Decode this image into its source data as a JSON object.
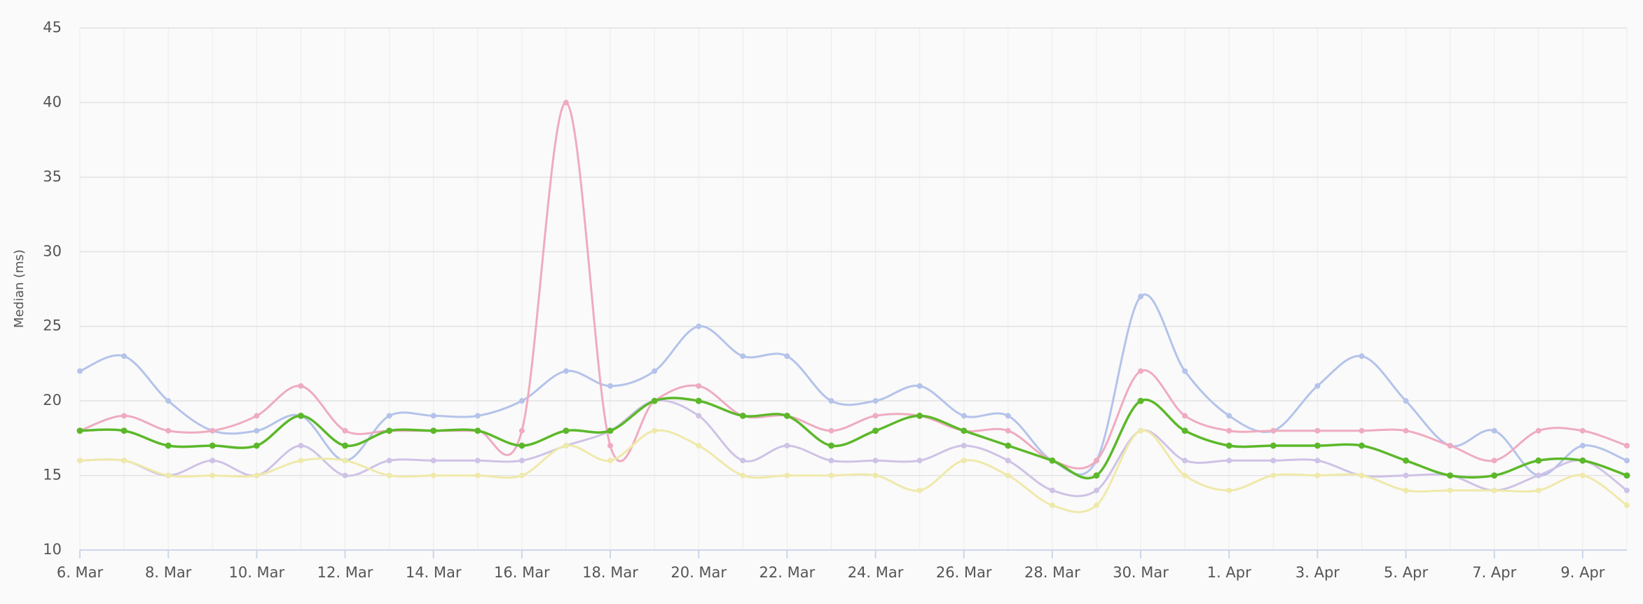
{
  "chart_data": {
    "type": "line",
    "y_label": "Median (ms)",
    "categories": [
      "6. Mar",
      null,
      "8. Mar",
      null,
      "10. Mar",
      null,
      "12. Mar",
      null,
      "14. Mar",
      null,
      "16. Mar",
      null,
      "18. Mar",
      null,
      "20. Mar",
      null,
      "22. Mar",
      null,
      "24. Mar",
      null,
      "26. Mar",
      null,
      "28. Mar",
      null,
      "30. Mar",
      null,
      "1. Apr",
      null,
      "3. Apr",
      null,
      "5. Apr",
      null,
      "7. Apr",
      null,
      "9. Apr",
      null
    ],
    "series": [
      {
        "color": "#b4c3ea",
        "values": [
          22,
          23,
          20,
          18,
          18,
          19,
          16,
          19,
          19,
          19,
          20,
          22,
          21,
          22,
          25,
          23,
          23,
          20,
          20,
          21,
          19,
          19,
          16,
          16,
          27,
          22,
          19,
          18,
          21,
          23,
          20,
          17,
          18,
          15,
          17,
          16
        ]
      },
      {
        "color": "#efabc0",
        "values": [
          18,
          19,
          18,
          18,
          19,
          21,
          18,
          18,
          18,
          18,
          18,
          40,
          17,
          20,
          21,
          19,
          19,
          18,
          19,
          19,
          18,
          18,
          16,
          16,
          22,
          19,
          18,
          18,
          18,
          18,
          18,
          17,
          16,
          18,
          18,
          17
        ]
      },
      {
        "color": "#cfc2e6",
        "values": [
          16,
          16,
          15,
          16,
          15,
          17,
          15,
          16,
          16,
          16,
          16,
          17,
          18,
          20,
          19,
          16,
          17,
          16,
          16,
          16,
          17,
          16,
          14,
          14,
          18,
          16,
          16,
          16,
          16,
          15,
          15,
          15,
          14,
          15,
          16,
          14
        ]
      },
      {
        "color": "#efe9aa",
        "values": [
          16,
          16,
          15,
          15,
          15,
          16,
          16,
          15,
          15,
          15,
          15,
          17,
          16,
          18,
          17,
          15,
          15,
          15,
          15,
          14,
          16,
          15,
          13,
          13,
          18,
          15,
          14,
          15,
          15,
          15,
          14,
          14,
          14,
          14,
          15,
          13
        ]
      },
      {
        "color": "#5cb82a",
        "values": [
          18,
          18,
          17,
          17,
          17,
          19,
          17,
          18,
          18,
          18,
          17,
          18,
          18,
          20,
          20,
          19,
          19,
          17,
          18,
          19,
          18,
          17,
          16,
          15,
          20,
          18,
          17,
          17,
          17,
          17,
          16,
          15,
          15,
          16,
          16,
          15
        ]
      }
    ],
    "ylim": [
      10,
      45
    ],
    "yticks": [
      10,
      15,
      20,
      25,
      30,
      35,
      40,
      45
    ],
    "grid": true
  }
}
